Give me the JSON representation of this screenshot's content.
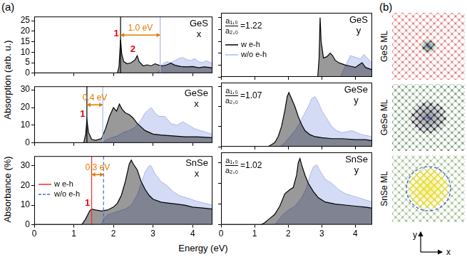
{
  "figure": {
    "panel_labels": [
      "(a)",
      "(b)"
    ],
    "ylabel_top": "Absorption (arb. u.)",
    "ylabel_bottom": "Absorbance (%)",
    "xlabel": "Energy (eV)"
  },
  "chart_data": [
    {
      "type": "line",
      "title": "GeS",
      "subtitle": "x",
      "xlim": [
        0,
        4.5
      ],
      "xticks": [
        0,
        1,
        2,
        3,
        4
      ],
      "ylim": [
        0,
        27
      ],
      "yticks": [
        0,
        5,
        10,
        15,
        20,
        25
      ],
      "grid": false,
      "tick_labels": "y",
      "series": [
        {
          "color": "#000000",
          "x": [
            0,
            2.1,
            2.14,
            2.18,
            2.21,
            2.26,
            2.35,
            2.45,
            2.55,
            2.6,
            2.65,
            2.75,
            2.85,
            2.95,
            3.05,
            3.15,
            3.25,
            3.35,
            3.45,
            3.55,
            3.7,
            3.85,
            4.0,
            4.15,
            4.3,
            4.4,
            4.5
          ],
          "values": [
            0,
            0,
            3,
            16,
            9,
            5.5,
            4.5,
            5,
            6.5,
            8.3,
            5.5,
            3.5,
            4,
            3.5,
            4.5,
            3.8,
            3.5,
            4,
            4.8,
            3.8,
            3.2,
            3,
            3.2,
            2.6,
            3,
            2.8,
            2.5
          ]
        },
        {
          "color": "#aab8ec",
          "x": [
            0,
            3.12,
            3.18,
            3.25,
            3.35,
            3.45,
            3.55,
            3.65,
            3.75,
            3.85,
            3.95,
            4.05,
            4.15,
            4.25,
            4.35,
            4.5
          ],
          "values": [
            0,
            0,
            2,
            4.5,
            5.5,
            5,
            6,
            7,
            7.5,
            6.5,
            6,
            7,
            5.5,
            5,
            6,
            4.5
          ]
        }
      ],
      "vlines": [
        {
          "x": 2.18,
          "color": "#000000"
        },
        {
          "x": 3.18,
          "color": "#aab8ec"
        }
      ],
      "gap": {
        "from": 2.18,
        "to": 3.18,
        "label": "1.0 eV",
        "color": "#e07b00"
      },
      "peak_labels": [
        {
          "label": "1",
          "x": 2.18,
          "y": 16,
          "color": "#e8000b"
        },
        {
          "label": "2",
          "x": 2.6,
          "y": 8.3,
          "color": "#e8000b"
        }
      ]
    },
    {
      "type": "line",
      "title": "GeS",
      "subtitle": "y",
      "xlim": [
        0,
        4.5
      ],
      "xticks": [
        0,
        1,
        2,
        3,
        4
      ],
      "ylim": [
        0,
        27
      ],
      "yticks": [
        0,
        5,
        10,
        15,
        20,
        25
      ],
      "grid": false,
      "tick_labels": false,
      "legend": "left",
      "series": [
        {
          "name": "w e-h",
          "color": "#000000",
          "x": [
            0,
            2.88,
            2.92,
            2.95,
            2.98,
            3.05,
            3.15,
            3.25,
            3.32,
            3.4,
            3.5,
            3.6,
            3.7,
            3.85,
            4.0,
            4.1,
            4.2,
            4.3,
            4.4,
            4.5
          ],
          "values": [
            0,
            0,
            8,
            25,
            15,
            8,
            8.5,
            10,
            9,
            7,
            6,
            5.5,
            5,
            4.5,
            4,
            5,
            6,
            4,
            3.5,
            3
          ]
        },
        {
          "name": "w/o e-h",
          "color": "#aab8ec",
          "x": [
            0,
            3.55,
            3.65,
            3.75,
            3.85,
            3.95,
            4.05,
            4.15,
            4.25,
            4.35,
            4.45,
            4.5
          ],
          "values": [
            0,
            0,
            3,
            6,
            9,
            8.5,
            8,
            7.5,
            9.5,
            8,
            6.5,
            6
          ]
        }
      ],
      "ratio": {
        "numerator": "a₁,₀",
        "denominator": "a₂,₀",
        "sign": "=",
        "value": 1.22
      }
    },
    {
      "type": "line",
      "title": "GeSe",
      "subtitle": "x",
      "xlim": [
        0,
        4.5
      ],
      "xticks": [
        0,
        1,
        2,
        3,
        4
      ],
      "ylim": [
        0,
        32
      ],
      "yticks": [
        0,
        10,
        20,
        30
      ],
      "grid": false,
      "tick_labels": "y",
      "series": [
        {
          "color": "#000000",
          "x": [
            0,
            1.25,
            1.3,
            1.33,
            1.37,
            1.45,
            1.55,
            1.7,
            1.8,
            1.9,
            2.0,
            2.08,
            2.15,
            2.22,
            2.3,
            2.4,
            2.5,
            2.6,
            2.7,
            2.8,
            3.0,
            3.2,
            3.5,
            3.8,
            4.1,
            4.5
          ],
          "values": [
            0,
            0,
            5,
            13,
            6,
            2,
            1.5,
            2.5,
            8,
            15,
            20,
            18,
            22,
            19,
            17,
            16,
            14,
            11,
            9,
            7,
            5,
            4.5,
            4,
            3.5,
            3.5,
            3
          ]
        },
        {
          "color": "#aab8ec",
          "x": [
            0,
            1.7,
            1.8,
            1.95,
            2.1,
            2.25,
            2.4,
            2.55,
            2.7,
            2.8,
            2.9,
            2.95,
            3.05,
            3.15,
            3.3,
            3.45,
            3.6,
            3.75,
            3.9,
            4.05,
            4.2,
            4.35,
            4.5
          ],
          "values": [
            0,
            0,
            1.5,
            3,
            4,
            6,
            7,
            9,
            13,
            17,
            19,
            20,
            17,
            15,
            15,
            11,
            10,
            12,
            10,
            8,
            7,
            6,
            5
          ]
        }
      ],
      "vlines": [
        {
          "x": 1.33,
          "color": "#000000"
        },
        {
          "x": 1.73,
          "color": "#aab8ec"
        }
      ],
      "gap": {
        "from": 1.33,
        "to": 1.73,
        "label": "0.4 eV",
        "color": "#e07b00"
      },
      "peak_labels": [
        {
          "label": "1",
          "x": 1.33,
          "y": 13,
          "color": "#e8000b"
        }
      ]
    },
    {
      "type": "line",
      "title": "GeSe",
      "subtitle": "y",
      "xlim": [
        0,
        4.5
      ],
      "xticks": [
        0,
        1,
        2,
        3,
        4
      ],
      "ylim": [
        0,
        32
      ],
      "yticks": [
        0,
        10,
        20,
        30
      ],
      "grid": false,
      "tick_labels": false,
      "series": [
        {
          "color": "#000000",
          "x": [
            0,
            1.4,
            1.5,
            1.6,
            1.7,
            1.8,
            1.9,
            1.97,
            2.02,
            2.1,
            2.2,
            2.3,
            2.4,
            2.5,
            2.65,
            2.8,
            3.0,
            3.3,
            3.6,
            4.0,
            4.3,
            4.5
          ],
          "values": [
            0,
            0,
            1,
            2,
            5,
            10,
            18,
            25,
            27,
            24,
            20,
            15,
            11,
            8,
            6,
            5,
            4.5,
            4,
            4,
            3.5,
            3.5,
            3
          ]
        },
        {
          "color": "#aab8ec",
          "x": [
            0,
            1.75,
            1.9,
            2.05,
            2.2,
            2.35,
            2.5,
            2.6,
            2.7,
            2.8,
            2.9,
            3.0,
            3.15,
            3.3,
            3.45,
            3.6,
            3.75,
            3.9,
            4.05,
            4.2,
            4.35,
            4.5
          ],
          "values": [
            0,
            0,
            2,
            5,
            8,
            12,
            17,
            20,
            24,
            25,
            22,
            18,
            14,
            10,
            8,
            7,
            7.5,
            8,
            7,
            6,
            5.5,
            5
          ]
        }
      ],
      "ratio": {
        "numerator": "a₁,₀",
        "denominator": "a₂,₀",
        "sign": "=",
        "value": 1.07
      }
    },
    {
      "type": "line",
      "title": "SnSe",
      "subtitle": "x",
      "xlim": [
        0,
        4.5
      ],
      "xticks": [
        0,
        1,
        2,
        3,
        4
      ],
      "ylim": [
        0,
        35
      ],
      "yticks": [
        0,
        10,
        20,
        30
      ],
      "grid": false,
      "tick_labels": true,
      "legend": "left",
      "series": [
        {
          "color": "#000000",
          "x": [
            0,
            1.2,
            1.3,
            1.4,
            1.45,
            1.55,
            1.7,
            1.85,
            2.0,
            2.1,
            2.2,
            2.3,
            2.4,
            2.45,
            2.5,
            2.6,
            2.7,
            2.8,
            2.9,
            3.0,
            3.2,
            3.4,
            3.6,
            3.8,
            4.0,
            4.25,
            4.5
          ],
          "values": [
            0,
            0,
            3,
            7,
            8,
            7.5,
            7,
            7.5,
            9,
            11,
            15,
            22,
            31,
            33,
            31,
            28,
            22,
            18,
            15,
            13,
            11.5,
            11,
            10.5,
            10,
            9,
            8.5,
            8
          ]
        },
        {
          "color": "#aab8ec",
          "x": [
            0,
            1.7,
            1.75,
            1.85,
            2.0,
            2.15,
            2.3,
            2.45,
            2.6,
            2.7,
            2.8,
            2.9,
            2.95,
            3.05,
            3.2,
            3.35,
            3.5,
            3.65,
            3.8,
            3.95,
            4.1,
            4.3,
            4.5
          ],
          "values": [
            0,
            0,
            3,
            5,
            6,
            7,
            8,
            10,
            15,
            21,
            27,
            30,
            30,
            26,
            22,
            20,
            17,
            15,
            14,
            13,
            12,
            11,
            10
          ]
        }
      ],
      "vlines": [
        {
          "name": "w e-h",
          "x": 1.45,
          "color": "#ff2a2a",
          "line_style": "solid"
        },
        {
          "name": "w/o e-h",
          "x": 1.75,
          "color": "#4e6ad6",
          "line_style": "dashed"
        }
      ],
      "gap": {
        "from": 1.45,
        "to": 1.75,
        "label": "0.3 eV",
        "color": "#e07b00"
      },
      "peak_labels": [
        {
          "label": "1",
          "x": 1.45,
          "y": 8,
          "color": "#e8000b"
        }
      ]
    },
    {
      "type": "line",
      "title": "SnSe",
      "subtitle": "y",
      "xlim": [
        0,
        4.5
      ],
      "xticks": [
        0,
        1,
        2,
        3,
        4
      ],
      "ylim": [
        0,
        35
      ],
      "yticks": [
        0,
        10,
        20,
        30
      ],
      "grid": false,
      "tick_labels": "x",
      "series": [
        {
          "color": "#000000",
          "x": [
            0,
            1.2,
            1.3,
            1.45,
            1.6,
            1.75,
            1.9,
            2.05,
            2.15,
            2.25,
            2.3,
            2.35,
            2.4,
            2.5,
            2.6,
            2.75,
            2.9,
            3.1,
            3.4,
            3.7,
            4.0,
            4.3,
            4.5
          ],
          "values": [
            0,
            0,
            1,
            3,
            5,
            9,
            15,
            17,
            18,
            24,
            30,
            32,
            29,
            24,
            20,
            16,
            13,
            11,
            10,
            9.5,
            9,
            8.5,
            8
          ]
        },
        {
          "color": "#aab8ec",
          "x": [
            0,
            1.6,
            1.7,
            1.85,
            2.0,
            2.2,
            2.4,
            2.55,
            2.65,
            2.75,
            2.85,
            2.95,
            3.1,
            3.3,
            3.5,
            3.7,
            3.9,
            4.1,
            4.3,
            4.5
          ],
          "values": [
            0,
            0,
            2,
            5,
            7,
            9,
            13,
            18,
            24,
            28,
            29,
            26,
            22,
            20,
            17,
            15,
            14,
            13,
            12,
            11
          ]
        }
      ],
      "ratio": {
        "numerator": "a₁,₀",
        "denominator": "a₂,₀",
        "sign": "=",
        "value": 1.02
      }
    }
  ],
  "panel_b": {
    "labels": [
      "GeS ML",
      "GeSe ML",
      "SnSe ML"
    ],
    "axis_x": "x",
    "axis_y": "y"
  }
}
